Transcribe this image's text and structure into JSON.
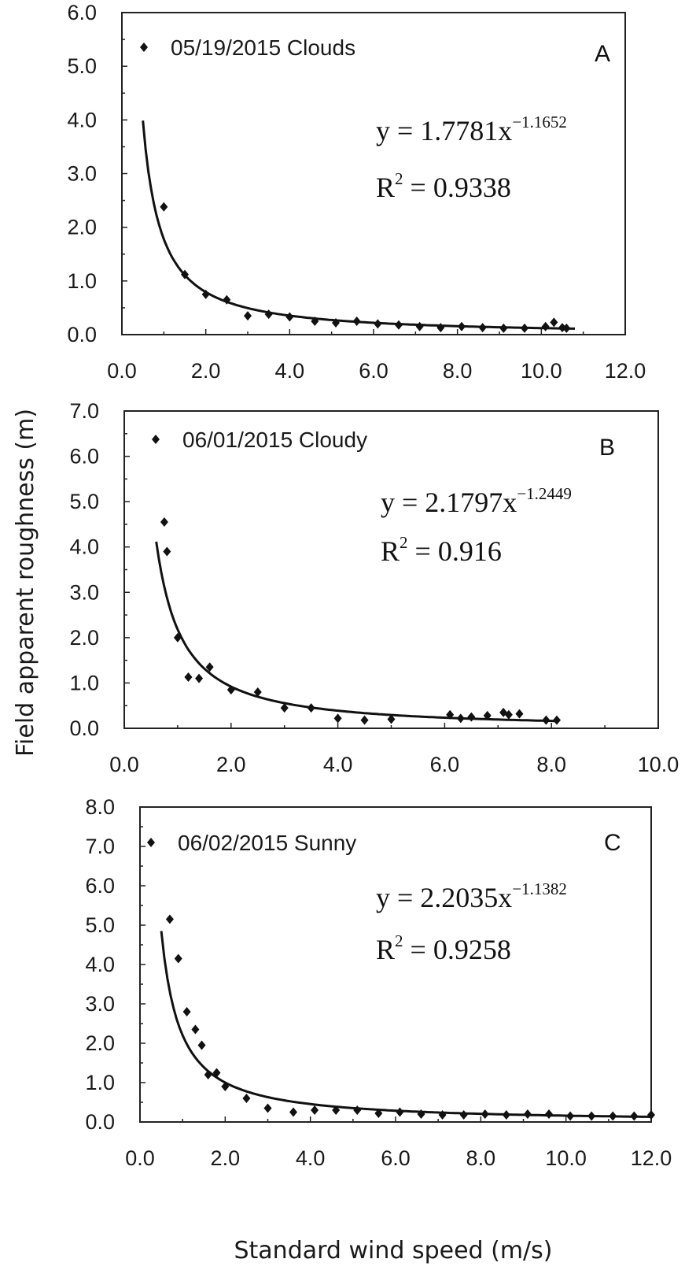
{
  "ylabel": "Field apparent roughness (m)",
  "xlabel": "Standard wind speed (m/s)",
  "chart_data": [
    {
      "type": "scatter",
      "panel_label": "A",
      "legend": "05/19/2015 Clouds",
      "equation": {
        "prefix": "y = 1.7781x",
        "exponent": "−1.1652",
        "r2_label": "R",
        "r2_sup": "2",
        "r2_value": " = 0.9338"
      },
      "fit": {
        "a": 1.7781,
        "b": -1.1652,
        "x_range": [
          0.5,
          10.8
        ]
      },
      "xlim": [
        0,
        12
      ],
      "ylim": [
        0,
        6
      ],
      "xticks": [
        "0.0",
        "2.0",
        "4.0",
        "6.0",
        "8.0",
        "10.0",
        "12.0"
      ],
      "yticks": [
        "0.0",
        "1.0",
        "2.0",
        "3.0",
        "4.0",
        "5.0",
        "6.0"
      ],
      "x_tick_values": [
        0,
        2,
        4,
        6,
        8,
        10,
        12
      ],
      "y_tick_values": [
        0,
        1,
        2,
        3,
        4,
        5,
        6
      ],
      "x": [
        1.0,
        1.5,
        2.0,
        2.5,
        3.0,
        3.5,
        4.0,
        4.6,
        5.1,
        5.6,
        6.1,
        6.6,
        7.1,
        7.6,
        8.1,
        8.6,
        9.1,
        9.6,
        10.1,
        10.3,
        10.5,
        10.6
      ],
      "y": [
        2.38,
        1.12,
        0.75,
        0.65,
        0.35,
        0.38,
        0.33,
        0.25,
        0.22,
        0.25,
        0.2,
        0.18,
        0.15,
        0.13,
        0.15,
        0.13,
        0.12,
        0.12,
        0.15,
        0.23,
        0.13,
        0.12
      ]
    },
    {
      "type": "scatter",
      "panel_label": "B",
      "legend": "06/01/2015 Cloudy",
      "equation": {
        "prefix": "y = 2.1797x",
        "exponent": "−1.2449",
        "r2_label": "R",
        "r2_sup": "2",
        "r2_value": " = 0.916"
      },
      "fit": {
        "a": 2.1797,
        "b": -1.2449,
        "x_range": [
          0.6,
          8.1
        ]
      },
      "xlim": [
        0,
        10
      ],
      "ylim": [
        0,
        7
      ],
      "xticks": [
        "0.0",
        "2.0",
        "4.0",
        "6.0",
        "8.0",
        "10.0"
      ],
      "yticks": [
        "0.0",
        "1.0",
        "2.0",
        "3.0",
        "4.0",
        "5.0",
        "6.0",
        "7.0"
      ],
      "x_tick_values": [
        0,
        2,
        4,
        6,
        8,
        10
      ],
      "y_tick_values": [
        0,
        1,
        2,
        3,
        4,
        5,
        6,
        7
      ],
      "x": [
        0.75,
        0.8,
        1.0,
        1.2,
        1.4,
        1.6,
        2.0,
        2.5,
        3.0,
        3.5,
        4.0,
        4.5,
        5.0,
        6.1,
        6.3,
        6.5,
        6.8,
        7.1,
        7.2,
        7.4,
        7.9,
        8.1
      ],
      "y": [
        4.55,
        3.9,
        2.0,
        1.13,
        1.1,
        1.35,
        0.85,
        0.8,
        0.45,
        0.45,
        0.22,
        0.18,
        0.2,
        0.3,
        0.22,
        0.25,
        0.28,
        0.35,
        0.3,
        0.32,
        0.18,
        0.18
      ]
    },
    {
      "type": "scatter",
      "panel_label": "C",
      "legend": "06/02/2015 Sunny",
      "equation": {
        "prefix": "y = 2.2035x",
        "exponent": "−1.1382",
        "r2_label": "R",
        "r2_sup": "2",
        "r2_value": " = 0.9258"
      },
      "fit": {
        "a": 2.2035,
        "b": -1.1382,
        "x_range": [
          0.5,
          12.0
        ]
      },
      "xlim": [
        0,
        12
      ],
      "ylim": [
        0,
        8
      ],
      "xticks": [
        "0.0",
        "2.0",
        "4.0",
        "6.0",
        "8.0",
        "10.0",
        "12.0"
      ],
      "yticks": [
        "0.0",
        "1.0",
        "2.0",
        "3.0",
        "4.0",
        "5.0",
        "6.0",
        "7.0",
        "8.0"
      ],
      "x_tick_values": [
        0,
        2,
        4,
        6,
        8,
        10,
        12
      ],
      "y_tick_values": [
        0,
        1,
        2,
        3,
        4,
        5,
        6,
        7,
        8
      ],
      "x": [
        0.7,
        0.9,
        1.1,
        1.3,
        1.45,
        1.6,
        1.8,
        2.0,
        2.5,
        3.0,
        3.6,
        4.1,
        4.6,
        5.1,
        5.6,
        6.1,
        6.6,
        7.1,
        7.6,
        8.1,
        8.6,
        9.1,
        9.6,
        10.1,
        10.6,
        11.1,
        11.6,
        12.0
      ],
      "y": [
        5.15,
        4.15,
        2.8,
        2.35,
        1.95,
        1.2,
        1.25,
        0.9,
        0.6,
        0.35,
        0.25,
        0.3,
        0.3,
        0.3,
        0.22,
        0.25,
        0.2,
        0.18,
        0.18,
        0.2,
        0.18,
        0.2,
        0.2,
        0.15,
        0.15,
        0.15,
        0.15,
        0.18
      ]
    }
  ]
}
